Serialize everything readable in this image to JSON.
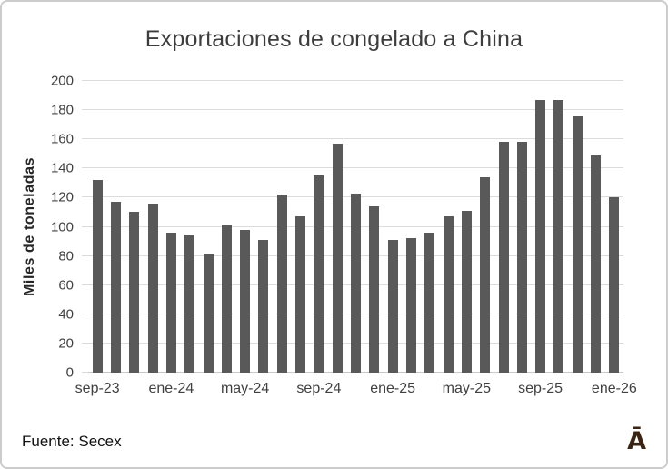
{
  "page": {
    "title_label": "Exportaciones de congelado a China",
    "source_label": "Fuente: Secex",
    "logo_glyph": "Ā"
  },
  "colors": {
    "bar": "#595959",
    "gridline": "#dbdbdb",
    "axis_baseline": "#c9c9c9",
    "title_text": "#3d3d3d",
    "tick_text": "#404040",
    "axis_title_text": "#262626",
    "source_text": "#111111",
    "logo": "#3a2515",
    "frame_border": "#cccccc"
  },
  "chart_data": {
    "type": "bar",
    "title": "Exportaciones de congelado a China",
    "xlabel": "",
    "ylabel": "Miles de toneladas",
    "ylim": [
      0,
      200
    ],
    "ytick_step": 20,
    "grid": true,
    "legend": "none",
    "xtick_every": 4,
    "categories": [
      "sep-23",
      "oct-23",
      "nov-23",
      "dic-23",
      "ene-24",
      "feb-24",
      "mar-24",
      "abr-24",
      "may-24",
      "jun-24",
      "jul-24",
      "ago-24",
      "sep-24",
      "oct-24",
      "nov-24",
      "dic-24",
      "ene-25",
      "feb-25",
      "mar-25",
      "abr-25",
      "may-25",
      "jun-25",
      "jul-25",
      "ago-25",
      "sep-25",
      "oct-25",
      "nov-25",
      "dic-25",
      "ene-26"
    ],
    "values": [
      132,
      117,
      110,
      116,
      96,
      95,
      81,
      101,
      98,
      91,
      122,
      107,
      135,
      157,
      123,
      114,
      91,
      92,
      96,
      107,
      111,
      134,
      158,
      158,
      187,
      187,
      176,
      149,
      120
    ],
    "xtick_labels_shown": [
      "sep-23",
      "ene-24",
      "may-24",
      "sep-24",
      "ene-25",
      "may-25",
      "sep-25",
      "ene-26"
    ],
    "source": "Fuente: Secex"
  }
}
